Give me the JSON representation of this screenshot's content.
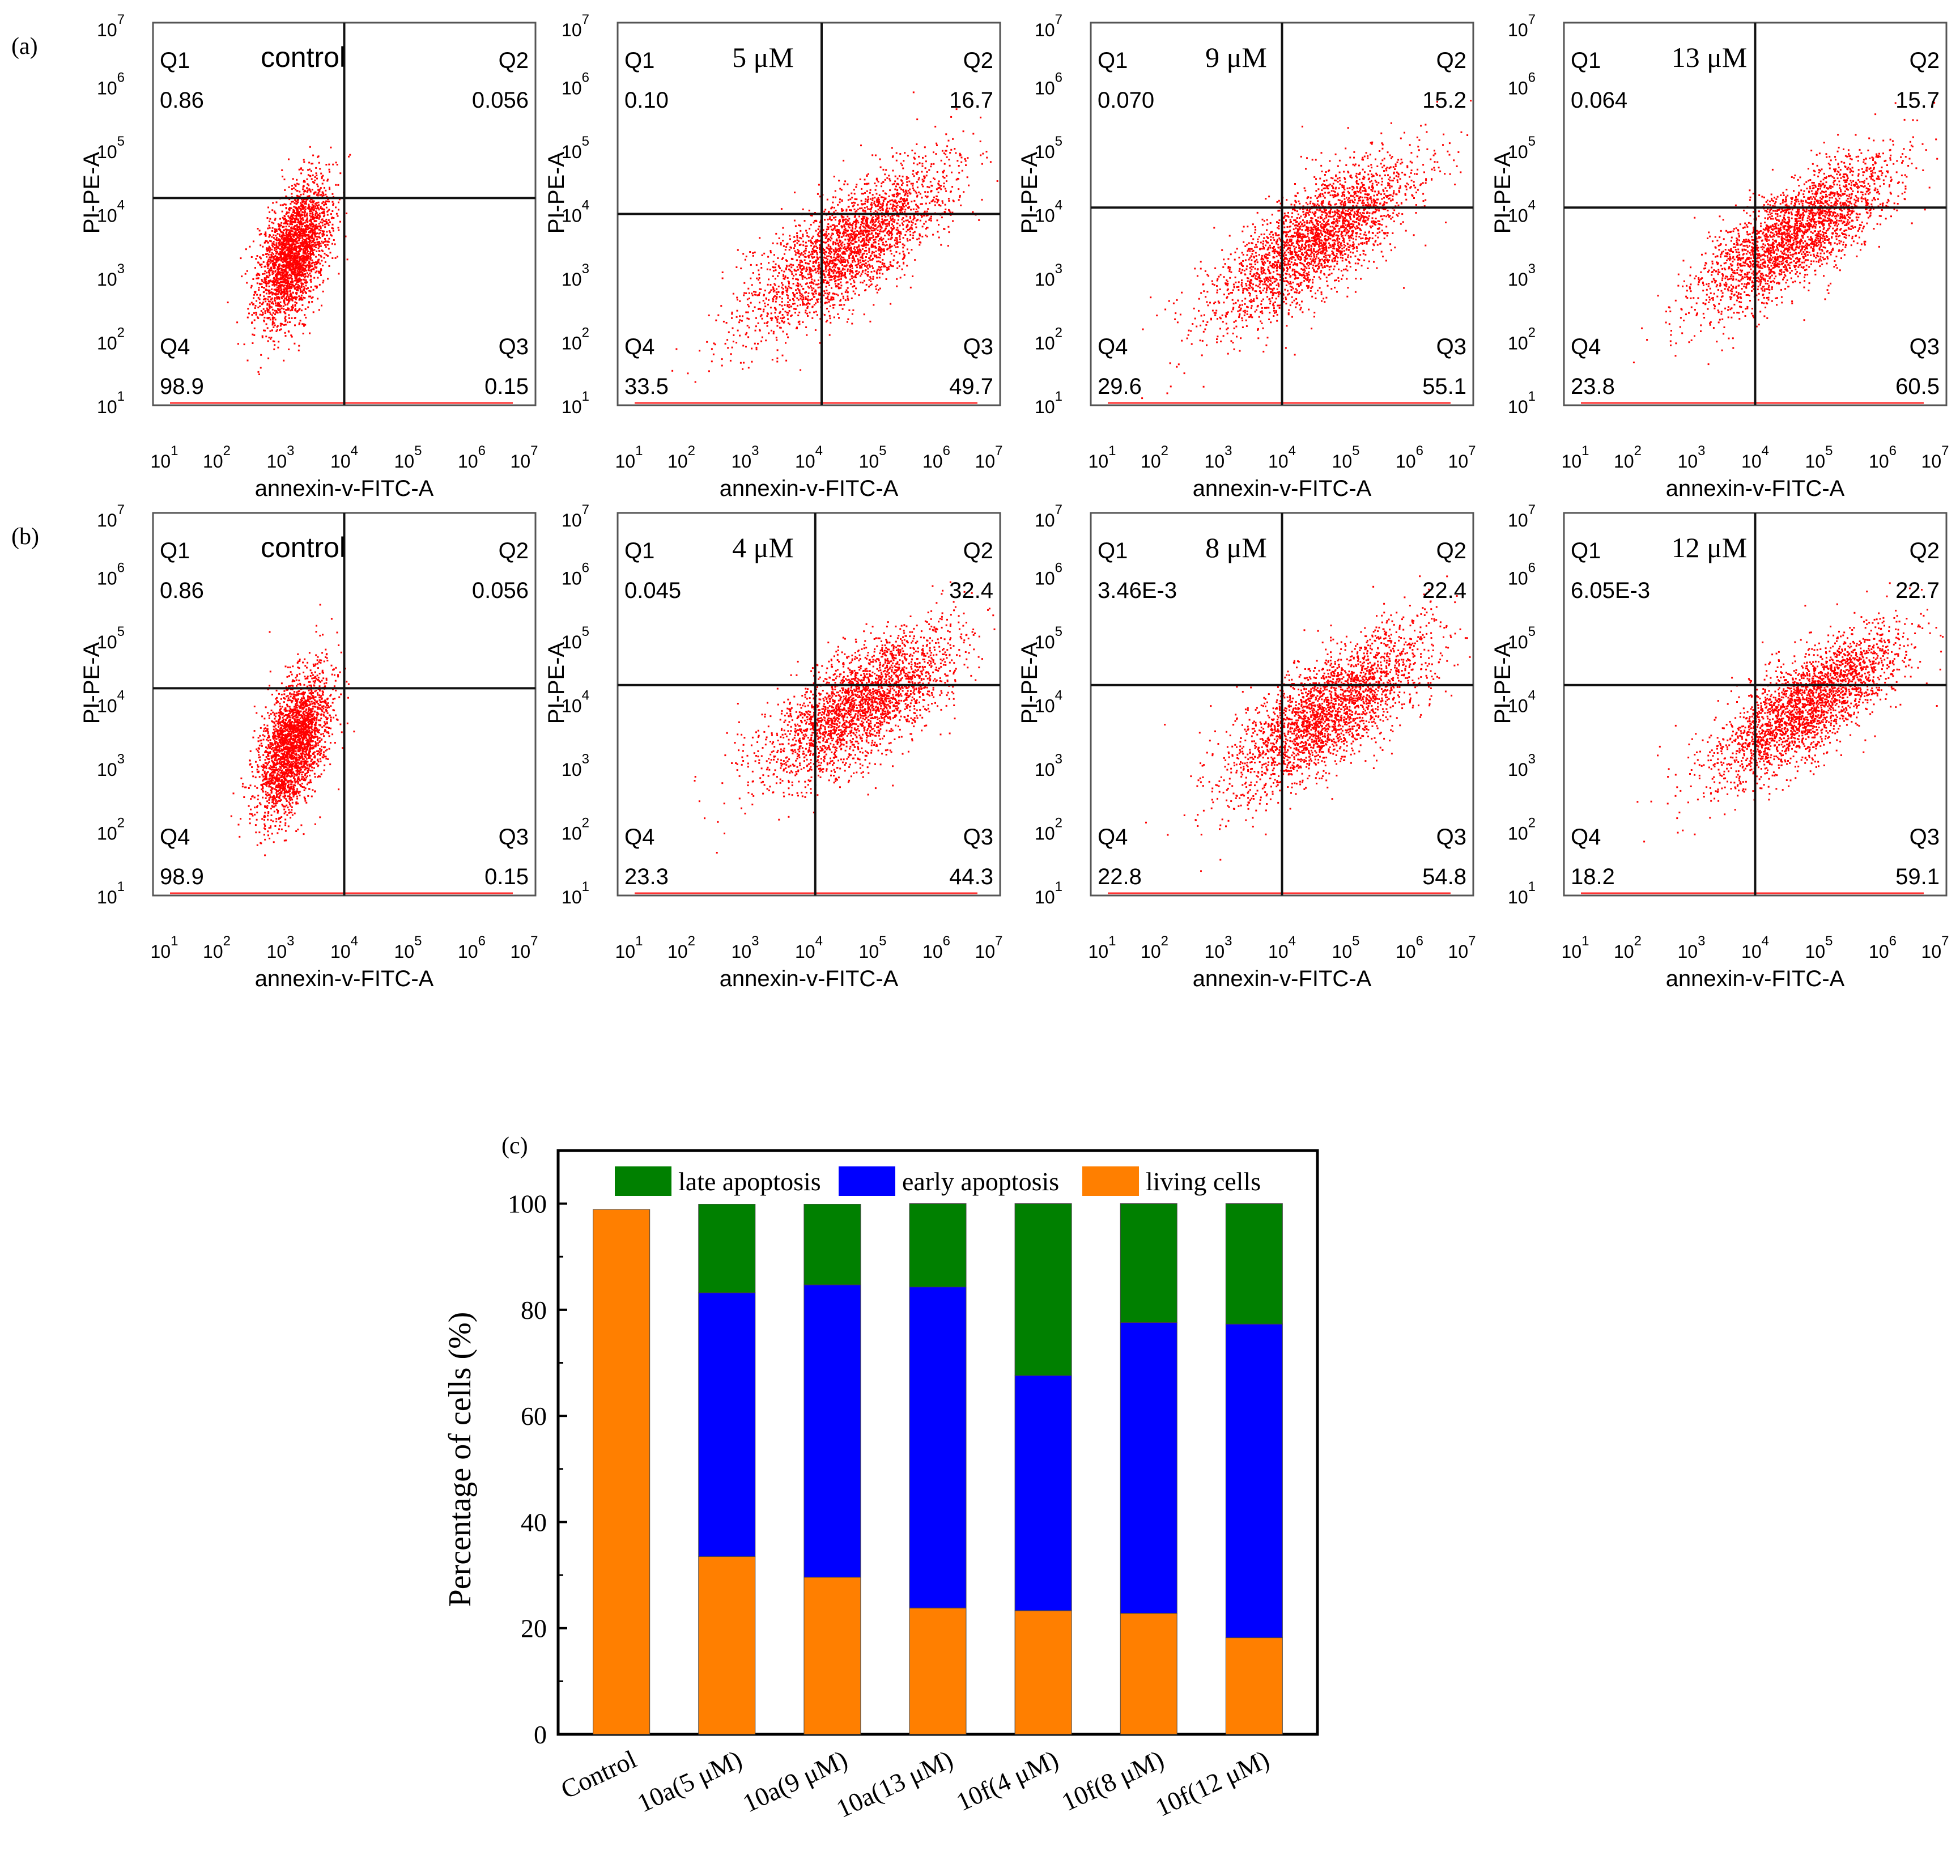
{
  "figure": {
    "panel_labels": [
      "(a)",
      "(b)",
      "(c)"
    ]
  },
  "chart_data": [
    {
      "type": "scatter",
      "panel": "(a)",
      "title": "control",
      "xlabel": "annexin-v-FITC-A",
      "ylabel": "PI-PE-A",
      "x_ticks": [
        "1",
        "2",
        "3",
        "4",
        "5",
        "6",
        "7"
      ],
      "y_ticks": [
        "1",
        "2",
        "3",
        "4",
        "5",
        "6",
        "7"
      ],
      "tick_base": "10",
      "xlim": [
        1,
        7
      ],
      "ylim": [
        1,
        7
      ],
      "gate": {
        "x": 4.0,
        "y": 4.25
      },
      "quadrants": {
        "Q1": "0.86",
        "Q2": "0.056",
        "Q3": "0.15",
        "Q4": "98.9"
      },
      "cloud": {
        "cx": 3.2,
        "cy": 3.4,
        "sx": 0.28,
        "sy": 0.55,
        "rho": 0.5,
        "n": 2600
      },
      "point_color": "#ff0000"
    },
    {
      "type": "scatter",
      "panel": "(a)",
      "title": "5 μM",
      "xlabel": "annexin-v-FITC-A",
      "ylabel": "PI-PE-A",
      "x_ticks": [
        "1",
        "2",
        "3",
        "4",
        "5",
        "6",
        "7"
      ],
      "y_ticks": [
        "1",
        "2",
        "3",
        "4",
        "5",
        "6",
        "7"
      ],
      "tick_base": "10",
      "xlim": [
        1,
        7
      ],
      "ylim": [
        1,
        7
      ],
      "gate": {
        "x": 4.2,
        "y": 4.0
      },
      "quadrants": {
        "Q1": "0.10",
        "Q2": "16.7",
        "Q3": "49.7",
        "Q4": "33.5"
      },
      "cloud": {
        "cx": 4.6,
        "cy": 3.5,
        "sx": 0.8,
        "sy": 0.65,
        "rho": 0.75,
        "n": 2600
      },
      "point_color": "#ff0000"
    },
    {
      "type": "scatter",
      "panel": "(a)",
      "title": "9 μM",
      "xlabel": "annexin-v-FITC-A",
      "ylabel": "PI-PE-A",
      "x_ticks": [
        "1",
        "2",
        "3",
        "4",
        "5",
        "6",
        "7"
      ],
      "y_ticks": [
        "1",
        "2",
        "3",
        "4",
        "5",
        "6",
        "7"
      ],
      "tick_base": "10",
      "xlim": [
        1,
        7
      ],
      "ylim": [
        1,
        7
      ],
      "gate": {
        "x": 4.0,
        "y": 4.1
      },
      "quadrants": {
        "Q1": "0.070",
        "Q2": "15.2",
        "Q3": "55.1",
        "Q4": "29.6"
      },
      "cloud": {
        "cx": 4.5,
        "cy": 3.6,
        "sx": 0.8,
        "sy": 0.65,
        "rho": 0.75,
        "n": 2600
      },
      "point_color": "#ff0000"
    },
    {
      "type": "scatter",
      "panel": "(a)",
      "title": "13 μM",
      "xlabel": "annexin-v-FITC-A",
      "ylabel": "PI-PE-A",
      "x_ticks": [
        "1",
        "2",
        "3",
        "4",
        "5",
        "6",
        "7"
      ],
      "y_ticks": [
        "1",
        "2",
        "3",
        "4",
        "5",
        "6",
        "7"
      ],
      "tick_base": "10",
      "xlim": [
        1,
        7
      ],
      "ylim": [
        1,
        7
      ],
      "gate": {
        "x": 4.0,
        "y": 4.1
      },
      "quadrants": {
        "Q1": "0.064",
        "Q2": "15.7",
        "Q3": "60.5",
        "Q4": "23.8"
      },
      "cloud": {
        "cx": 4.6,
        "cy": 3.7,
        "sx": 0.75,
        "sy": 0.6,
        "rho": 0.75,
        "n": 2600
      },
      "point_color": "#ff0000"
    },
    {
      "type": "scatter",
      "panel": "(b)",
      "title": "control",
      "xlabel": "annexin-v-FITC-A",
      "ylabel": "PI-PE-A",
      "x_ticks": [
        "1",
        "2",
        "3",
        "4",
        "5",
        "6",
        "7"
      ],
      "y_ticks": [
        "1",
        "2",
        "3",
        "4",
        "5",
        "6",
        "7"
      ],
      "tick_base": "10",
      "xlim": [
        1,
        7
      ],
      "ylim": [
        1,
        7
      ],
      "gate": {
        "x": 4.0,
        "y": 4.25
      },
      "quadrants": {
        "Q1": "0.86",
        "Q2": "0.056",
        "Q3": "0.15",
        "Q4": "98.9"
      },
      "cloud": {
        "cx": 3.2,
        "cy": 3.4,
        "sx": 0.28,
        "sy": 0.55,
        "rho": 0.5,
        "n": 2600
      },
      "point_color": "#ff0000"
    },
    {
      "type": "scatter",
      "panel": "(b)",
      "title": "4 μM",
      "xlabel": "annexin-v-FITC-A",
      "ylabel": "PI-PE-A",
      "x_ticks": [
        "1",
        "2",
        "3",
        "4",
        "5",
        "6",
        "7"
      ],
      "y_ticks": [
        "1",
        "2",
        "3",
        "4",
        "5",
        "6",
        "7"
      ],
      "tick_base": "10",
      "xlim": [
        1,
        7
      ],
      "ylim": [
        1,
        7
      ],
      "gate": {
        "x": 4.1,
        "y": 4.3
      },
      "quadrants": {
        "Q1": "0.045",
        "Q2": "32.4",
        "Q3": "44.3",
        "Q4": "23.3"
      },
      "cloud": {
        "cx": 4.8,
        "cy": 4.0,
        "sx": 0.75,
        "sy": 0.6,
        "rho": 0.7,
        "n": 2600
      },
      "point_color": "#ff0000"
    },
    {
      "type": "scatter",
      "panel": "(b)",
      "title": "8 μM",
      "xlabel": "annexin-v-FITC-A",
      "ylabel": "PI-PE-A",
      "x_ticks": [
        "1",
        "2",
        "3",
        "4",
        "5",
        "6",
        "7"
      ],
      "y_ticks": [
        "1",
        "2",
        "3",
        "4",
        "5",
        "6",
        "7"
      ],
      "tick_base": "10",
      "xlim": [
        1,
        7
      ],
      "ylim": [
        1,
        7
      ],
      "gate": {
        "x": 4.0,
        "y": 4.3
      },
      "quadrants": {
        "Q1": "3.46E-3",
        "Q2": "22.4",
        "Q3": "54.8",
        "Q4": "22.8"
      },
      "cloud": {
        "cx": 4.7,
        "cy": 3.9,
        "sx": 0.8,
        "sy": 0.65,
        "rho": 0.75,
        "n": 2600
      },
      "point_color": "#ff0000"
    },
    {
      "type": "scatter",
      "panel": "(b)",
      "title": "12 μM",
      "xlabel": "annexin-v-FITC-A",
      "ylabel": "PI-PE-A",
      "x_ticks": [
        "1",
        "2",
        "3",
        "4",
        "5",
        "6",
        "7"
      ],
      "y_ticks": [
        "1",
        "2",
        "3",
        "4",
        "5",
        "6",
        "7"
      ],
      "tick_base": "10",
      "xlim": [
        1,
        7
      ],
      "ylim": [
        1,
        7
      ],
      "gate": {
        "x": 4.0,
        "y": 4.3
      },
      "quadrants": {
        "Q1": "6.05E-3",
        "Q2": "22.7",
        "Q3": "59.1",
        "Q4": "18.2"
      },
      "cloud": {
        "cx": 4.8,
        "cy": 4.0,
        "sx": 0.75,
        "sy": 0.6,
        "rho": 0.75,
        "n": 2600
      },
      "point_color": "#ff0000"
    },
    {
      "type": "bar",
      "panel": "(c)",
      "stacked": true,
      "title": "",
      "xlabel": "",
      "ylabel": "Percentage of cells (%)",
      "ylim": [
        0,
        110
      ],
      "y_ticks": [
        0,
        20,
        40,
        60,
        80,
        100
      ],
      "categories": [
        "Control",
        "10a(5 μM)",
        "10a(9 μM)",
        "10a(13 μM)",
        "10f(4 μM)",
        "10f(8 μM)",
        "10f(12 μM)"
      ],
      "series": [
        {
          "name": "living cells",
          "color": "#ff7f00",
          "values": [
            98.9,
            33.5,
            29.6,
            23.8,
            23.3,
            22.8,
            18.2
          ]
        },
        {
          "name": "early apoptosis",
          "color": "#0000ff",
          "values": [
            0,
            49.7,
            55.1,
            60.5,
            44.3,
            54.8,
            59.1
          ]
        },
        {
          "name": "late apoptosis",
          "color": "#008000",
          "values": [
            0,
            16.7,
            15.2,
            15.7,
            32.4,
            22.4,
            22.7
          ]
        }
      ],
      "legend_order": [
        "late apoptosis",
        "early apoptosis",
        "living cells"
      ],
      "legend_position": "top"
    }
  ]
}
